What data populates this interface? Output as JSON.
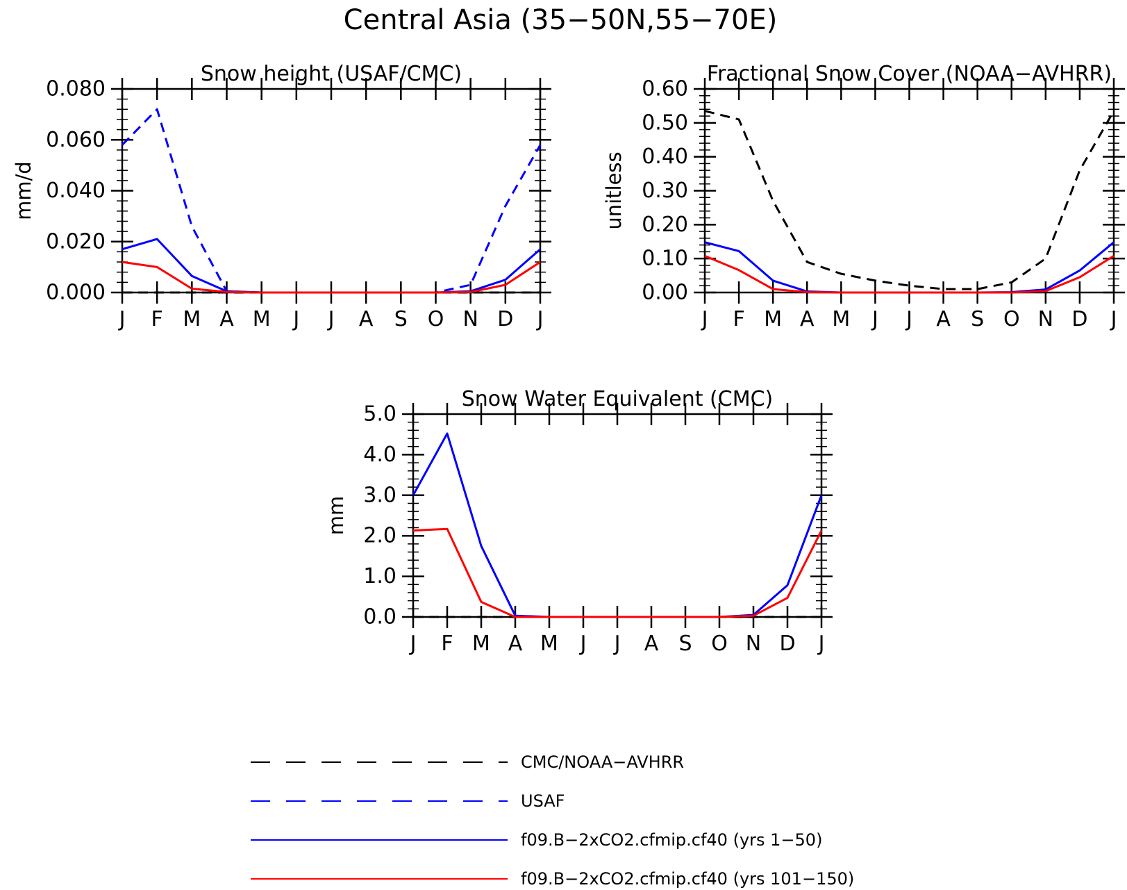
{
  "figure": {
    "title": "Central Asia (35−50N,55−70E)"
  },
  "colors": {
    "obs_black": "#000000",
    "obs_blue": "#0000ff",
    "model_blue": "#0000ff",
    "model_red": "#ff0000",
    "axis": "#000000"
  },
  "legend": {
    "items": [
      {
        "label": "CMC/NOAA−AVHRR",
        "color": "#000000",
        "dash": true
      },
      {
        "label": "USAF",
        "color": "#0000ff",
        "dash": true
      },
      {
        "label": "f09.B−2xCO2.cfmip.cf40 (yrs 1−50)",
        "color": "#0000ff",
        "dash": false
      },
      {
        "label": "f09.B−2xCO2.cfmip.cf40 (yrs 101−150)",
        "color": "#ff0000",
        "dash": false
      }
    ]
  },
  "chart_data": [
    {
      "type": "line",
      "title": "Snow height (USAF/CMC)",
      "xlabel": "",
      "ylabel": "mm/d",
      "categories": [
        "J",
        "F",
        "M",
        "A",
        "M",
        "J",
        "J",
        "A",
        "S",
        "O",
        "N",
        "D",
        "J"
      ],
      "ylim": [
        0,
        0.08
      ],
      "yticks": [
        0,
        0.02,
        0.04,
        0.06,
        0.08
      ],
      "ytick_labels": [
        "0.000",
        "0.020",
        "0.040",
        "0.060",
        "0.080"
      ],
      "grid": false,
      "series": [
        {
          "name": "CMC/NOAA−AVHRR",
          "color": "#000000",
          "dash": true,
          "values": [
            0,
            0,
            0,
            0,
            0,
            0,
            0,
            0,
            0,
            0,
            0,
            0,
            0
          ]
        },
        {
          "name": "USAF",
          "color": "#0000ff",
          "dash": true,
          "values": [
            0.058,
            0.072,
            0.026,
            0.0005,
            0,
            0,
            0,
            0,
            0,
            0,
            0.003,
            0.034,
            0.058
          ]
        },
        {
          "name": "f09.B−2xCO2.cfmip.cf40 (yrs 1−50)",
          "color": "#0000ff",
          "dash": false,
          "values": [
            0.017,
            0.021,
            0.0065,
            0.0005,
            0,
            0,
            0,
            0,
            0,
            0,
            0.0005,
            0.005,
            0.017
          ]
        },
        {
          "name": "f09.B−2xCO2.cfmip.cf40 (yrs 101−150)",
          "color": "#ff0000",
          "dash": false,
          "values": [
            0.012,
            0.01,
            0.0015,
            0.0002,
            0,
            0,
            0,
            0,
            0,
            0,
            0.0002,
            0.003,
            0.012
          ]
        }
      ]
    },
    {
      "type": "line",
      "title": "Fractional Snow Cover (NOAA−AVHRR)",
      "xlabel": "",
      "ylabel": "unitless",
      "categories": [
        "J",
        "F",
        "M",
        "A",
        "M",
        "J",
        "J",
        "A",
        "S",
        "O",
        "N",
        "D",
        "J"
      ],
      "ylim": [
        0,
        0.6
      ],
      "yticks": [
        0,
        0.1,
        0.2,
        0.3,
        0.4,
        0.5,
        0.6
      ],
      "ytick_labels": [
        "0.00",
        "0.10",
        "0.20",
        "0.30",
        "0.40",
        "0.50",
        "0.60"
      ],
      "grid": false,
      "series": [
        {
          "name": "CMC/NOAA−AVHRR",
          "color": "#000000",
          "dash": true,
          "values": [
            0.535,
            0.51,
            0.27,
            0.09,
            0.055,
            0.035,
            0.02,
            0.01,
            0.01,
            0.03,
            0.1,
            0.36,
            0.535
          ]
        },
        {
          "name": "f09.B−2xCO2.cfmip.cf40 (yrs 1−50)",
          "color": "#0000ff",
          "dash": false,
          "values": [
            0.148,
            0.122,
            0.035,
            0.003,
            0,
            0,
            0,
            0,
            0,
            0.001,
            0.009,
            0.065,
            0.148
          ]
        },
        {
          "name": "f09.B−2xCO2.cfmip.cf40 (yrs 101−150)",
          "color": "#ff0000",
          "dash": false,
          "values": [
            0.108,
            0.066,
            0.01,
            0.001,
            0,
            0,
            0,
            0,
            0,
            0,
            0.004,
            0.045,
            0.108
          ]
        }
      ]
    },
    {
      "type": "line",
      "title": "Snow Water Equivalent (CMC)",
      "xlabel": "",
      "ylabel": "mm",
      "categories": [
        "J",
        "F",
        "M",
        "A",
        "M",
        "J",
        "J",
        "A",
        "S",
        "O",
        "N",
        "D",
        "J"
      ],
      "ylim": [
        0,
        5
      ],
      "yticks": [
        0,
        1,
        2,
        3,
        4,
        5
      ],
      "ytick_labels": [
        "0.0",
        "1.0",
        "2.0",
        "3.0",
        "4.0",
        "5.0"
      ],
      "grid": false,
      "series": [
        {
          "name": "CMC/NOAA−AVHRR",
          "color": "#000000",
          "dash": true,
          "values": [
            0,
            0,
            0,
            0,
            0,
            0,
            0,
            0,
            0,
            0,
            0,
            0,
            0
          ]
        },
        {
          "name": "f09.B−2xCO2.cfmip.cf40 (yrs 1−50)",
          "color": "#0000ff",
          "dash": false,
          "values": [
            3.0,
            4.52,
            1.75,
            0.03,
            0,
            0,
            0,
            0,
            0,
            0,
            0.05,
            0.78,
            3.0
          ]
        },
        {
          "name": "f09.B−2xCO2.cfmip.cf40 (yrs 101−150)",
          "color": "#ff0000",
          "dash": false,
          "values": [
            2.13,
            2.17,
            0.37,
            0,
            0,
            0,
            0,
            0,
            0,
            0,
            0.03,
            0.47,
            2.13
          ]
        }
      ]
    }
  ]
}
